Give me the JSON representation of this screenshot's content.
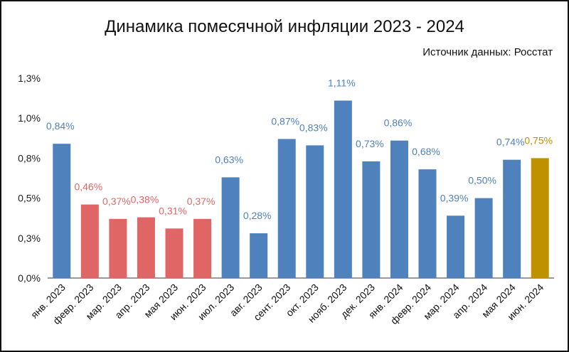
{
  "chart_data": {
    "type": "bar",
    "title": "Динамика помесячной инфляции 2023 - 2024",
    "source": "Источник данных: Росстат",
    "xlabel": "",
    "ylabel": "",
    "ylim": [
      0,
      1.25
    ],
    "y_ticks": [
      {
        "value": 0.0,
        "label": "0,0%"
      },
      {
        "value": 0.25,
        "label": "0,3%"
      },
      {
        "value": 0.5,
        "label": "0,5%"
      },
      {
        "value": 0.75,
        "label": "0,8%"
      },
      {
        "value": 1.0,
        "label": "1,0%"
      },
      {
        "value": 1.25,
        "label": "1,3%"
      }
    ],
    "grid": false,
    "categories": [
      "янв. 2023",
      "февр. 2023",
      "мар. 2023",
      "апр. 2023",
      "мая 2023",
      "июн. 2023",
      "июл. 2023",
      "авг. 2023",
      "сент. 2023",
      "окт. 2023",
      "нояб. 2023",
      "дек. 2023",
      "янв. 2024",
      "февр. 2024",
      "мар. 2024",
      "апр. 2024",
      "мая 2024",
      "июн. 2024"
    ],
    "values": [
      0.84,
      0.46,
      0.37,
      0.38,
      0.31,
      0.37,
      0.63,
      0.28,
      0.87,
      0.83,
      1.11,
      0.73,
      0.86,
      0.68,
      0.39,
      0.5,
      0.74,
      0.75
    ],
    "data_labels": [
      "0,84%",
      "0,46%",
      "0,37%",
      "0,38%",
      "0,31%",
      "0,37%",
      "0,63%",
      "0,28%",
      "0,87%",
      "0,83%",
      "1,11%",
      "0,73%",
      "0,86%",
      "0,68%",
      "0,39%",
      "0,50%",
      "0,74%",
      "0,75%"
    ],
    "bar_groups": [
      "blue",
      "red",
      "red",
      "red",
      "red",
      "red",
      "blue",
      "blue",
      "blue",
      "blue",
      "blue",
      "blue",
      "blue",
      "blue",
      "blue",
      "blue",
      "blue",
      "gold"
    ],
    "colors": {
      "blue": {
        "bar": "#4f81bd",
        "label": "#4f81bd"
      },
      "red": {
        "bar": "#e06666",
        "label": "#e06666"
      },
      "gold": {
        "bar": "#bf9000",
        "label": "#bf9000"
      }
    }
  }
}
